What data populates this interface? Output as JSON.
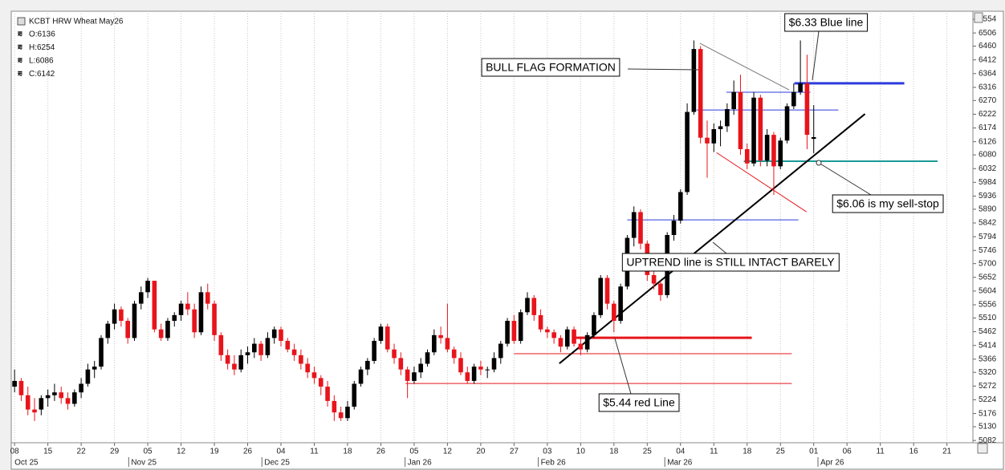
{
  "chart_data": {
    "type": "candlestick",
    "title": "KCBT HRW Wheat May26",
    "info": [
      "O:6136",
      "H:6254",
      "L:6086",
      "C:6142"
    ],
    "up_color": "#000000",
    "down_color": "#e8141b",
    "grid": true,
    "xlim": [
      -0.5,
      143.9
    ],
    "ylim": [
      5074,
      6582
    ],
    "xticks": [
      {
        "value": 0,
        "label": "08"
      },
      {
        "value": 5,
        "label": "15"
      },
      {
        "value": 10,
        "label": "22"
      },
      {
        "value": 15,
        "label": "29"
      },
      {
        "value": 20,
        "label": "05"
      },
      {
        "value": 25,
        "label": "12"
      },
      {
        "value": 30,
        "label": "19"
      },
      {
        "value": 35,
        "label": "26"
      },
      {
        "value": 40,
        "label": "04"
      },
      {
        "value": 45,
        "label": "11"
      },
      {
        "value": 50,
        "label": "18"
      },
      {
        "value": 55,
        "label": "26"
      },
      {
        "value": 60,
        "label": "05"
      },
      {
        "value": 65,
        "label": "12"
      },
      {
        "value": 70,
        "label": "20"
      },
      {
        "value": 75,
        "label": "27"
      },
      {
        "value": 80,
        "label": "03"
      },
      {
        "value": 85,
        "label": "10"
      },
      {
        "value": 90,
        "label": "18"
      },
      {
        "value": 95,
        "label": "25"
      },
      {
        "value": 100,
        "label": "04"
      },
      {
        "value": 105,
        "label": "11"
      },
      {
        "value": 110,
        "label": "18"
      },
      {
        "value": 115,
        "label": "25"
      },
      {
        "value": 120,
        "label": "01"
      },
      {
        "value": 125,
        "label": "06"
      },
      {
        "value": 130,
        "label": "11"
      },
      {
        "value": 135,
        "label": "16"
      },
      {
        "value": 140,
        "label": "21"
      }
    ],
    "month_labels": [
      {
        "value": 0,
        "label": "Oct 25"
      },
      {
        "value": 17.5,
        "label": "Nov 25"
      },
      {
        "value": 37.5,
        "label": "Dec 25"
      },
      {
        "value": 59,
        "label": "Jan 26"
      },
      {
        "value": 79,
        "label": "Feb 26"
      },
      {
        "value": 98,
        "label": "Mar 26"
      },
      {
        "value": 121,
        "label": "Apr 26"
      }
    ],
    "yticks": [
      5082,
      5130,
      5176,
      5224,
      5272,
      5320,
      5366,
      5414,
      5462,
      5510,
      5556,
      5604,
      5652,
      5700,
      5746,
      5794,
      5842,
      5890,
      5936,
      5984,
      6032,
      6080,
      6126,
      6174,
      6222,
      6270,
      6316,
      6364,
      6412,
      6460,
      6506,
      6554
    ],
    "candles": [
      [
        5270,
        5330,
        5250,
        5290
      ],
      [
        5290,
        5300,
        5220,
        5240
      ],
      [
        5240,
        5270,
        5170,
        5190
      ],
      [
        5190,
        5230,
        5150,
        5180
      ],
      [
        5190,
        5240,
        5170,
        5230
      ],
      [
        5230,
        5260,
        5200,
        5240
      ],
      [
        5240,
        5280,
        5220,
        5250
      ],
      [
        5250,
        5270,
        5210,
        5230
      ],
      [
        5230,
        5250,
        5190,
        5210
      ],
      [
        5210,
        5260,
        5200,
        5250
      ],
      [
        5250,
        5300,
        5230,
        5280
      ],
      [
        5280,
        5350,
        5270,
        5330
      ],
      [
        5330,
        5360,
        5300,
        5340
      ],
      [
        5340,
        5450,
        5330,
        5440
      ],
      [
        5440,
        5500,
        5420,
        5490
      ],
      [
        5490,
        5560,
        5470,
        5540
      ],
      [
        5540,
        5550,
        5480,
        5500
      ],
      [
        5500,
        5510,
        5420,
        5440
      ],
      [
        5440,
        5570,
        5430,
        5560
      ],
      [
        5560,
        5620,
        5540,
        5600
      ],
      [
        5600,
        5650,
        5580,
        5640
      ],
      [
        5640,
        5640,
        5460,
        5470
      ],
      [
        5470,
        5490,
        5430,
        5440
      ],
      [
        5440,
        5510,
        5430,
        5500
      ],
      [
        5500,
        5530,
        5480,
        5520
      ],
      [
        5520,
        5570,
        5500,
        5560
      ],
      [
        5560,
        5600,
        5520,
        5540
      ],
      [
        5540,
        5560,
        5440,
        5460
      ],
      [
        5460,
        5620,
        5450,
        5600
      ],
      [
        5600,
        5630,
        5540,
        5560
      ],
      [
        5560,
        5570,
        5430,
        5450
      ],
      [
        5450,
        5460,
        5360,
        5380
      ],
      [
        5380,
        5400,
        5330,
        5350
      ],
      [
        5350,
        5380,
        5310,
        5330
      ],
      [
        5330,
        5400,
        5320,
        5380
      ],
      [
        5380,
        5410,
        5350,
        5390
      ],
      [
        5390,
        5440,
        5370,
        5420
      ],
      [
        5420,
        5430,
        5360,
        5380
      ],
      [
        5380,
        5460,
        5370,
        5440
      ],
      [
        5440,
        5480,
        5420,
        5470
      ],
      [
        5470,
        5480,
        5410,
        5430
      ],
      [
        5430,
        5440,
        5390,
        5400
      ],
      [
        5400,
        5420,
        5360,
        5380
      ],
      [
        5380,
        5400,
        5330,
        5350
      ],
      [
        5350,
        5370,
        5300,
        5320
      ],
      [
        5320,
        5340,
        5280,
        5300
      ],
      [
        5300,
        5310,
        5240,
        5270
      ],
      [
        5270,
        5290,
        5200,
        5220
      ],
      [
        5220,
        5240,
        5150,
        5180
      ],
      [
        5180,
        5200,
        5150,
        5160
      ],
      [
        5160,
        5220,
        5150,
        5200
      ],
      [
        5200,
        5290,
        5190,
        5280
      ],
      [
        5280,
        5340,
        5270,
        5330
      ],
      [
        5330,
        5370,
        5310,
        5360
      ],
      [
        5360,
        5440,
        5350,
        5430
      ],
      [
        5430,
        5490,
        5420,
        5480
      ],
      [
        5480,
        5490,
        5390,
        5400
      ],
      [
        5400,
        5420,
        5350,
        5370
      ],
      [
        5370,
        5390,
        5310,
        5330
      ],
      [
        5330,
        5340,
        5230,
        5290
      ],
      [
        5290,
        5340,
        5280,
        5320
      ],
      [
        5320,
        5370,
        5300,
        5350
      ],
      [
        5350,
        5400,
        5340,
        5390
      ],
      [
        5390,
        5470,
        5380,
        5450
      ],
      [
        5450,
        5480,
        5420,
        5440
      ],
      [
        5440,
        5560,
        5390,
        5400
      ],
      [
        5400,
        5410,
        5350,
        5370
      ],
      [
        5370,
        5390,
        5310,
        5320
      ],
      [
        5320,
        5340,
        5280,
        5290
      ],
      [
        5290,
        5350,
        5280,
        5340
      ],
      [
        5340,
        5360,
        5310,
        5330
      ],
      [
        5330,
        5340,
        5300,
        5330
      ],
      [
        5330,
        5390,
        5320,
        5370
      ],
      [
        5370,
        5430,
        5350,
        5420
      ],
      [
        5420,
        5510,
        5410,
        5500
      ],
      [
        5500,
        5520,
        5420,
        5430
      ],
      [
        5430,
        5540,
        5420,
        5530
      ],
      [
        5530,
        5600,
        5520,
        5580
      ],
      [
        5580,
        5590,
        5500,
        5520
      ],
      [
        5520,
        5540,
        5460,
        5470
      ],
      [
        5470,
        5480,
        5440,
        5460
      ],
      [
        5460,
        5470,
        5420,
        5440
      ],
      [
        5440,
        5450,
        5390,
        5410
      ],
      [
        5410,
        5480,
        5400,
        5470
      ],
      [
        5470,
        5480,
        5410,
        5420
      ],
      [
        5420,
        5440,
        5380,
        5400
      ],
      [
        5400,
        5460,
        5390,
        5450
      ],
      [
        5450,
        5530,
        5440,
        5520
      ],
      [
        5520,
        5660,
        5510,
        5650
      ],
      [
        5650,
        5660,
        5540,
        5560
      ],
      [
        5560,
        5570,
        5460,
        5500
      ],
      [
        5500,
        5630,
        5490,
        5620
      ],
      [
        5620,
        5800,
        5610,
        5790
      ],
      [
        5790,
        5900,
        5760,
        5880
      ],
      [
        5880,
        5890,
        5750,
        5770
      ],
      [
        5770,
        5780,
        5640,
        5660
      ],
      [
        5660,
        5680,
        5610,
        5630
      ],
      [
        5630,
        5640,
        5570,
        5590
      ],
      [
        5590,
        5810,
        5580,
        5800
      ],
      [
        5800,
        5870,
        5780,
        5850
      ],
      [
        5850,
        5960,
        5840,
        5950
      ],
      [
        5950,
        6260,
        5940,
        6230
      ],
      [
        6230,
        6480,
        6220,
        6450
      ],
      [
        6450,
        6460,
        6120,
        6140
      ],
      [
        6140,
        6200,
        6000,
        6120
      ],
      [
        6120,
        6190,
        6090,
        6170
      ],
      [
        6170,
        6200,
        6110,
        6180
      ],
      [
        6180,
        6260,
        6160,
        6240
      ],
      [
        6240,
        6340,
        6220,
        6300
      ],
      [
        6300,
        6360,
        6080,
        6100
      ],
      [
        6100,
        6120,
        6030,
        6050
      ],
      [
        6050,
        6300,
        6040,
        6280
      ],
      [
        6280,
        6290,
        6040,
        6060
      ],
      [
        6060,
        6170,
        6040,
        6150
      ],
      [
        6150,
        6160,
        5940,
        6040
      ],
      [
        6040,
        6140,
        6030,
        6130
      ],
      [
        6130,
        6260,
        6120,
        6250
      ],
      [
        6250,
        6330,
        6240,
        6300
      ],
      [
        6300,
        6480,
        6290,
        6330
      ],
      [
        6330,
        6430,
        6100,
        6150
      ],
      [
        6136,
        6254,
        6086,
        6142
      ]
    ],
    "lines": [
      {
        "color": "#2b3bdc",
        "width": 3,
        "x": [
          117.1,
          133.6
        ],
        "y": [
          6330,
          6330
        ]
      },
      {
        "color": "#1a9a96",
        "width": 2,
        "x": [
          109.5,
          138.6
        ],
        "y": [
          6058,
          6058
        ]
      },
      {
        "color": "#e8141b",
        "width": 3,
        "x": [
          84,
          110.7
        ],
        "y": [
          5441,
          5441
        ]
      },
      {
        "color": "#e8141b",
        "width": 1,
        "x": [
          75,
          116.7
        ],
        "y": [
          5385,
          5385
        ]
      },
      {
        "color": "#e8141b",
        "width": 1,
        "x": [
          58.7,
          116.7
        ],
        "y": [
          5281,
          5281
        ]
      },
      {
        "color": "#2b3bdc",
        "width": 1,
        "x": [
          92,
          117.7
        ],
        "y": [
          5853,
          5853
        ]
      },
      {
        "color": "#2b3bdc",
        "width": 1,
        "x": [
          102.4,
          123.7
        ],
        "y": [
          6237,
          6237
        ]
      },
      {
        "color": "#2b3bdc",
        "width": 1,
        "x": [
          106.9,
          119.5
        ],
        "y": [
          6299,
          6299
        ]
      },
      {
        "color": "#000000",
        "width": 2,
        "x": [
          81.8,
          127.7
        ],
        "y": [
          5351,
          6223
        ]
      },
      {
        "color": "#777777",
        "width": 1,
        "x": [
          102.9,
          116.3
        ],
        "y": [
          6470,
          6307
        ]
      },
      {
        "color": "#e8141b",
        "width": 1,
        "x": [
          105.4,
          118.9
        ],
        "y": [
          6088,
          5881
        ]
      }
    ],
    "annotations": [
      "$6.33 Blue line",
      "BULL FLAG FORMATION",
      "$6.06 is my sell-stop",
      "UPTREND line is STILL INTACT BARELY",
      "$5.44 red Line"
    ]
  }
}
